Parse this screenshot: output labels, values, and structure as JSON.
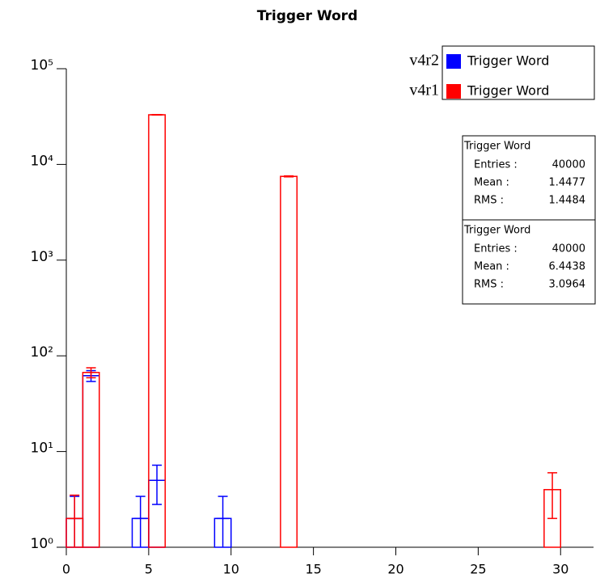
{
  "chart_data": {
    "type": "histogram",
    "title": "Trigger Word",
    "bins": [
      0,
      1,
      2,
      3,
      4,
      5,
      6,
      7,
      8,
      9,
      10,
      11,
      12,
      13,
      14,
      15,
      16,
      17,
      18,
      19,
      20,
      21,
      22,
      23,
      24,
      25,
      26,
      27,
      28,
      29,
      30,
      31,
      32
    ],
    "series": [
      {
        "name": "Trigger Word",
        "label": "v4r2",
        "color": "#0000ff",
        "values": [
          2,
          62,
          0,
          0,
          2,
          5,
          0,
          0,
          0,
          2,
          0,
          0,
          0,
          0,
          0,
          0,
          0,
          0,
          0,
          0,
          0,
          0,
          0,
          0,
          0,
          0,
          0,
          0,
          0,
          0,
          0,
          0
        ],
        "errors": [
          1.4,
          8,
          0,
          0,
          1.4,
          2.2,
          0,
          0,
          0,
          1.4,
          0,
          0,
          0,
          0,
          0,
          0,
          0,
          0,
          0,
          0,
          0,
          0,
          0,
          0,
          0,
          0,
          0,
          0,
          0,
          0,
          0,
          0
        ]
      },
      {
        "name": "Trigger Word",
        "label": "v4r1",
        "color": "#ff0000",
        "values": [
          2,
          67,
          0,
          0,
          0,
          33000,
          0,
          0,
          0,
          0,
          0,
          0,
          0,
          7500,
          0,
          0,
          0,
          0,
          0,
          0,
          0,
          0,
          0,
          0,
          0,
          0,
          0,
          0,
          0,
          4,
          0,
          0
        ],
        "errors": [
          1.5,
          8,
          0,
          0,
          0,
          180,
          0,
          0,
          0,
          0,
          0,
          0,
          0,
          87,
          0,
          0,
          0,
          0,
          0,
          0,
          0,
          0,
          0,
          0,
          0,
          0,
          0,
          0,
          0,
          2,
          0,
          0
        ]
      }
    ],
    "xlim": [
      0,
      32
    ],
    "xticks": [
      0,
      5,
      10,
      15,
      20,
      25,
      30
    ],
    "ylim": [
      1,
      100000
    ],
    "ylog": true,
    "yticks": [
      {
        "value": 1,
        "label": "10⁰"
      },
      {
        "value": 10,
        "label": "10¹"
      },
      {
        "value": 100,
        "label": "10²"
      },
      {
        "value": 1000,
        "label": "10³"
      },
      {
        "value": 10000,
        "label": "10⁴"
      },
      {
        "value": 100000,
        "label": "10⁵"
      }
    ],
    "stats": [
      {
        "title": "Trigger Word",
        "rows": [
          {
            "label": "Entries :",
            "value": 40000
          },
          {
            "label": "Mean :",
            "value": 1.4477
          },
          {
            "label": "RMS :",
            "value": 1.4484
          }
        ]
      },
      {
        "title": "Trigger Word",
        "rows": [
          {
            "label": "Entries :",
            "value": 40000
          },
          {
            "label": "Mean :",
            "value": 6.4438
          },
          {
            "label": "RMS :",
            "value": 3.0964
          }
        ]
      }
    ]
  }
}
